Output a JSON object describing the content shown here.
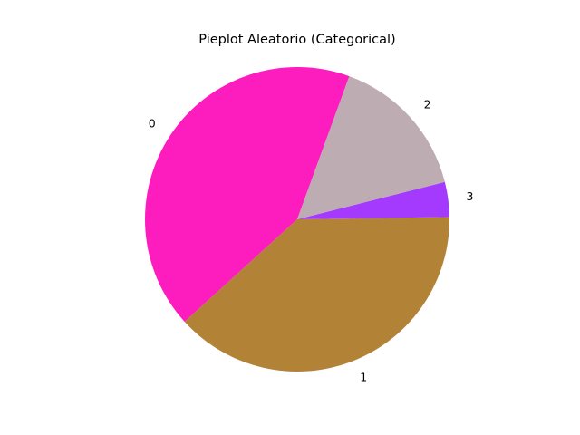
{
  "chart_data": {
    "type": "pie",
    "title": "Pieplot Aleatorio (Categorical)",
    "labels": [
      "0",
      "1",
      "3",
      "2"
    ],
    "values": [
      42.3,
      38.5,
      3.7,
      15.5
    ],
    "colors": [
      "#fd1cbd",
      "#b28236",
      "#a43afe",
      "#bdacb1"
    ],
    "start_angle": 70,
    "direction": "counterclockwise",
    "legend": "none"
  }
}
